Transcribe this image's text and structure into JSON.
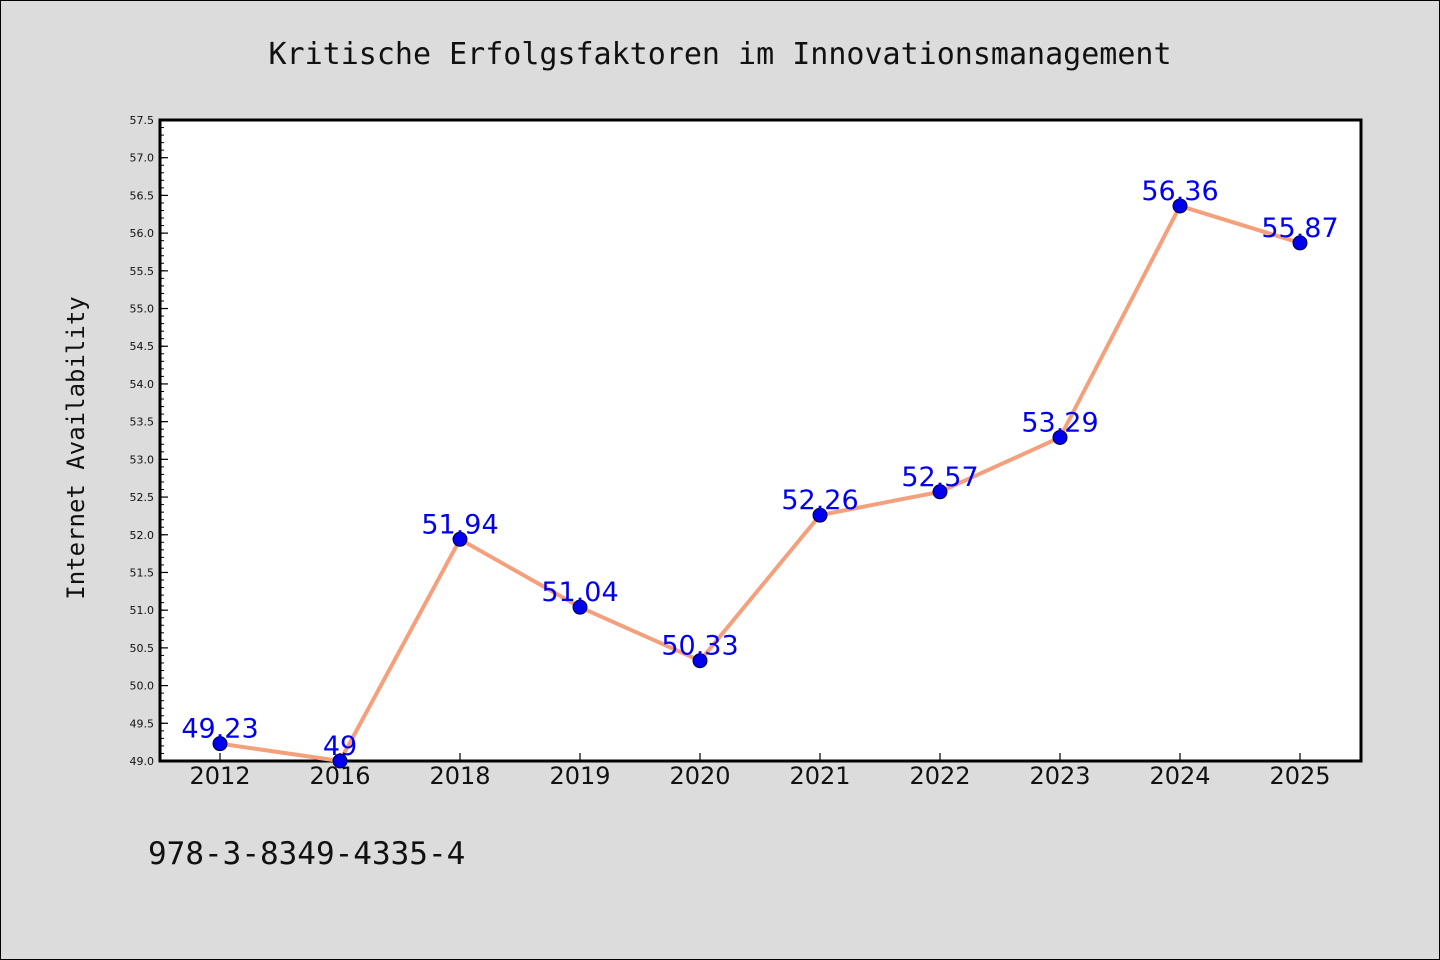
{
  "chart_data": {
    "type": "line",
    "title": "Kritische Erfolgsfaktoren im Innovationsmanagement",
    "xlabel": "",
    "ylabel": "Internet Availability",
    "categories": [
      "2012",
      "2016",
      "2018",
      "2019",
      "2020",
      "2021",
      "2022",
      "2023",
      "2024",
      "2025"
    ],
    "series": [
      {
        "values": [
          49.23,
          49,
          51.94,
          51.04,
          50.33,
          52.26,
          52.57,
          53.29,
          56.36,
          55.87
        ],
        "labels": [
          "49.23",
          "49",
          "51.94",
          "51.04",
          "50.33",
          "52.26",
          "52.57",
          "53.29",
          "56.36",
          "55.87"
        ],
        "line_color": "#f4a07c",
        "marker_color": "#0000ee",
        "label_color": "#0000ee"
      }
    ],
    "ylim": [
      49.0,
      57.5
    ],
    "yticks": [
      "49.0",
      "49.5",
      "50.0",
      "50.5",
      "51.0",
      "51.5",
      "52.0",
      "52.5",
      "53.0",
      "53.5",
      "54.0",
      "54.5",
      "55.0",
      "55.5",
      "56.0",
      "56.5",
      "57.0",
      "57.5"
    ],
    "grid": false,
    "legend": "none"
  },
  "footer": {
    "isbn": "978-3-8349-4335-4"
  }
}
